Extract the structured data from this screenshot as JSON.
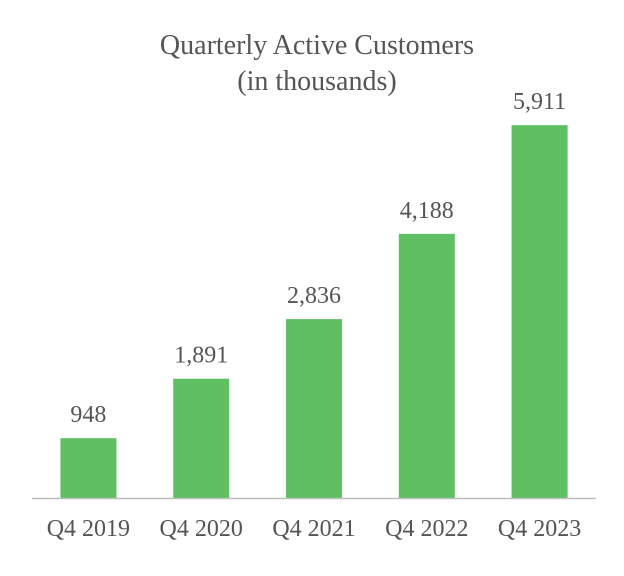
{
  "chart_data": {
    "type": "bar",
    "title": "Quarterly Active Customers",
    "subtitle": "(in thousands)",
    "categories": [
      "Q4 2019",
      "Q4 2020",
      "Q4 2021",
      "Q4 2022",
      "Q4 2023"
    ],
    "values": [
      948,
      1891,
      2836,
      4188,
      5911
    ],
    "data_labels": [
      "948",
      "1,891",
      "2,836",
      "4,188",
      "5,911"
    ],
    "xlabel": "",
    "ylabel": "",
    "ylim": [
      0,
      6500
    ],
    "grid": false,
    "legend": "none",
    "colors": {
      "bar": "#5fbf63",
      "axis": "#bdbdbd",
      "text": "#555555"
    }
  }
}
